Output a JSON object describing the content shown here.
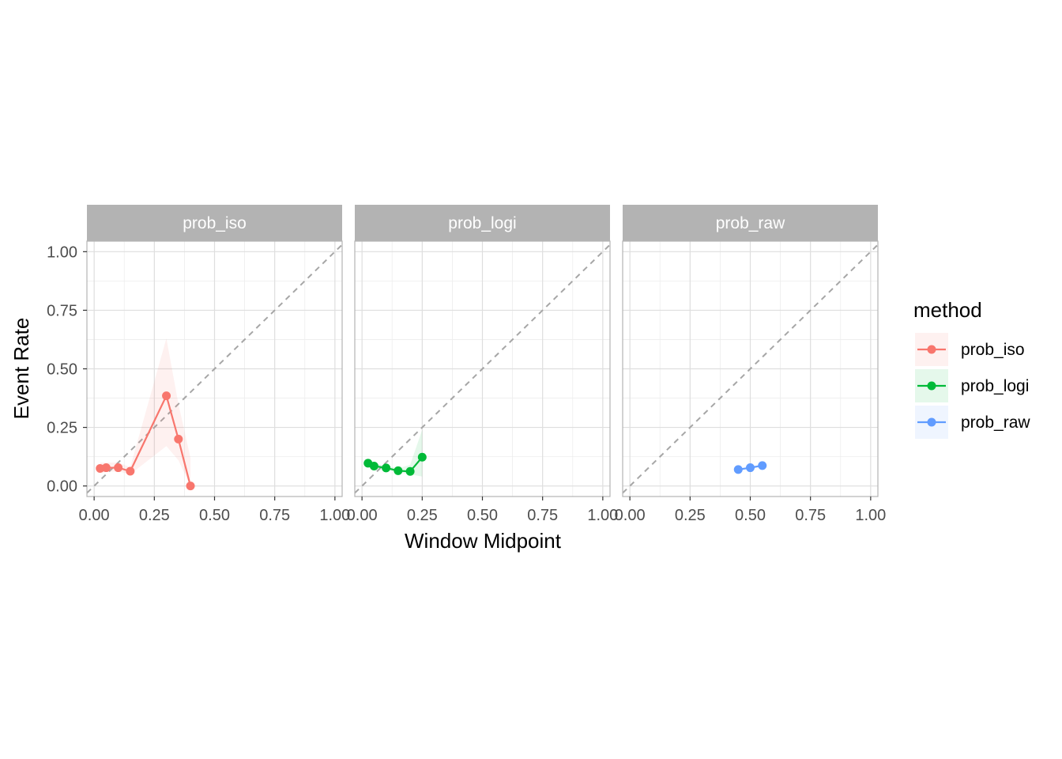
{
  "chart_data": {
    "type": "line",
    "facet_by": "method",
    "facets": [
      "prob_iso",
      "prob_logi",
      "prob_raw"
    ],
    "xlabel": "Window Midpoint",
    "ylabel": "Event Rate",
    "xlim": [
      -0.03,
      1.03
    ],
    "ylim": [
      -0.045,
      1.045
    ],
    "x_ticks": [
      0,
      0.25,
      0.5,
      0.75,
      1
    ],
    "x_tick_labels": [
      "0.00",
      "0.25",
      "0.50",
      "0.75",
      "1.00"
    ],
    "y_ticks": [
      0,
      0.25,
      0.5,
      0.75,
      1
    ],
    "y_tick_labels": [
      "0.00",
      "0.25",
      "0.50",
      "0.75",
      "1.00"
    ],
    "reference_line": {
      "slope": 1,
      "intercept": 0,
      "style": "dashed",
      "color": "#a6a6a6"
    },
    "grid": true,
    "legend": {
      "title": "method",
      "position": "right",
      "entries": [
        "prob_iso",
        "prob_logi",
        "prob_raw"
      ]
    },
    "series": [
      {
        "name": "prob_iso",
        "color": "#F8766D",
        "x": [
          0.025,
          0.05,
          0.1,
          0.15,
          0.3,
          0.35,
          0.4
        ],
        "y": [
          0.075,
          0.078,
          0.078,
          0.063,
          0.385,
          0.2,
          0.0
        ],
        "ribbon_lower": [
          0.055,
          0.06,
          0.062,
          0.05,
          0.17,
          0.11,
          0.0
        ],
        "ribbon_upper": [
          0.1,
          0.1,
          0.1,
          0.08,
          0.63,
          0.35,
          0.12
        ]
      },
      {
        "name": "prob_logi",
        "color": "#00BA38",
        "x": [
          0.025,
          0.05,
          0.1,
          0.15,
          0.2,
          0.25
        ],
        "y": [
          0.097,
          0.085,
          0.077,
          0.065,
          0.062,
          0.123
        ],
        "ribbon_lower": [
          0.085,
          0.075,
          0.068,
          0.058,
          0.05,
          0.04
        ],
        "ribbon_upper": [
          0.11,
          0.095,
          0.087,
          0.075,
          0.09,
          0.24
        ]
      },
      {
        "name": "prob_raw",
        "color": "#619CFF",
        "x": [
          0.45,
          0.5,
          0.55
        ],
        "y": [
          0.07,
          0.078,
          0.087
        ],
        "ribbon_lower": [
          0.065,
          0.073,
          0.082
        ],
        "ribbon_upper": [
          0.075,
          0.083,
          0.092
        ]
      }
    ]
  }
}
